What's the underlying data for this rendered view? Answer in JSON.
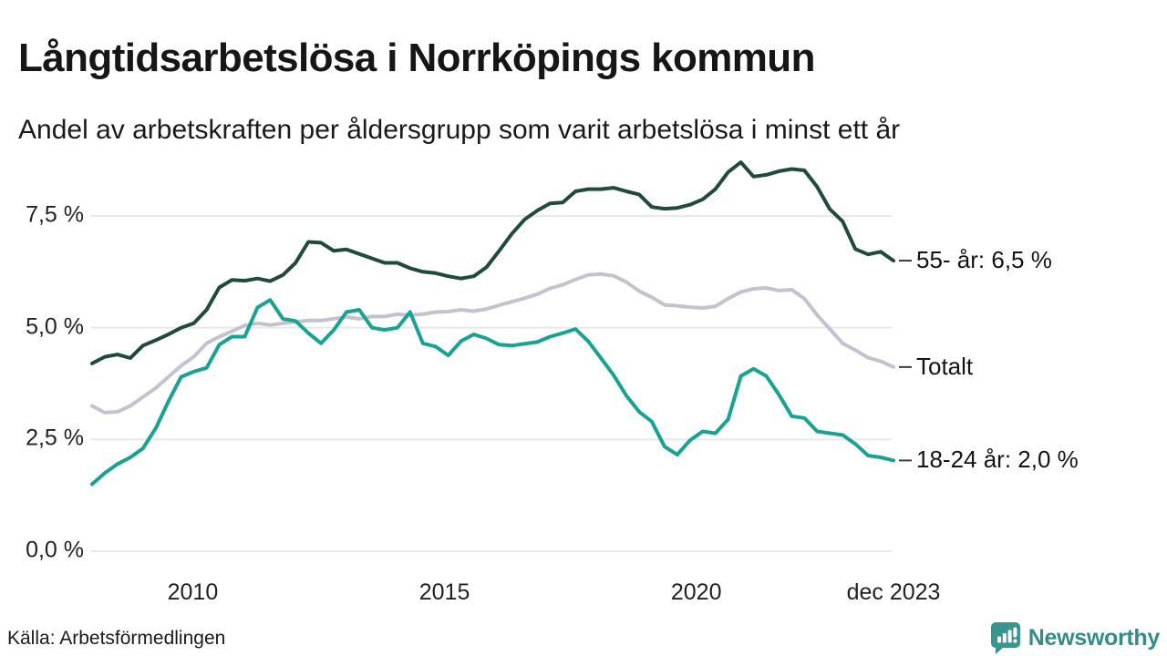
{
  "chart_data": {
    "type": "line",
    "title": "Långtidsarbetslösa i Norrköpings kommun",
    "subtitle": "Andel av arbetskraften per åldersgrupp som varit arbetslösa i minst ett år",
    "source": "Källa: Arbetsförmedlingen",
    "x_range": [
      2008.0,
      2023.917
    ],
    "ylim": [
      0,
      9.2
    ],
    "grid": "horizontal-only",
    "legend": "end-of-line annotations at right",
    "y_ticks": [
      {
        "value": 0.0,
        "label": "0,0 %"
      },
      {
        "value": 2.5,
        "label": "2,5 %"
      },
      {
        "value": 5.0,
        "label": "5,0 %"
      },
      {
        "value": 7.5,
        "label": "7,5 %"
      }
    ],
    "x_ticks": [
      {
        "t": 2010.0,
        "label": "2010"
      },
      {
        "t": 2015.0,
        "label": "2015"
      },
      {
        "t": 2020.0,
        "label": "2020"
      },
      {
        "t": 2023.917,
        "label": "dec 2023"
      }
    ],
    "series": [
      {
        "name": "Totalt",
        "annotation": "Totalt",
        "color_key": "series_total",
        "end_value": 4.1,
        "values": [
          3.25,
          3.1,
          3.12,
          3.25,
          3.45,
          3.65,
          3.9,
          4.15,
          4.35,
          4.65,
          4.8,
          4.92,
          5.05,
          5.1,
          5.06,
          5.1,
          5.13,
          5.16,
          5.16,
          5.2,
          5.24,
          5.2,
          5.25,
          5.25,
          5.3,
          5.28,
          5.3,
          5.35,
          5.36,
          5.4,
          5.37,
          5.42,
          5.5,
          5.58,
          5.66,
          5.75,
          5.88,
          5.96,
          6.08,
          6.18,
          6.2,
          6.16,
          6.02,
          5.82,
          5.68,
          5.51,
          5.49,
          5.46,
          5.44,
          5.48,
          5.65,
          5.8,
          5.87,
          5.89,
          5.83,
          5.85,
          5.65,
          5.28,
          4.97,
          4.65,
          4.5,
          4.33,
          4.25,
          4.12
        ]
      },
      {
        "name": "55- år",
        "annotation": "55- år: 6,5 %",
        "color_key": "series_55",
        "end_value": 6.5,
        "values": [
          4.2,
          4.35,
          4.4,
          4.32,
          4.6,
          4.72,
          4.85,
          5.0,
          5.1,
          5.4,
          5.9,
          6.07,
          6.05,
          6.1,
          6.04,
          6.18,
          6.45,
          6.92,
          6.9,
          6.72,
          6.75,
          6.65,
          6.55,
          6.45,
          6.45,
          6.33,
          6.25,
          6.22,
          6.15,
          6.1,
          6.15,
          6.35,
          6.72,
          7.1,
          7.42,
          7.62,
          7.78,
          7.8,
          8.05,
          8.1,
          8.1,
          8.13,
          8.05,
          7.98,
          7.7,
          7.66,
          7.68,
          7.75,
          7.87,
          8.1,
          8.48,
          8.7,
          8.38,
          8.42,
          8.5,
          8.55,
          8.52,
          8.15,
          7.65,
          7.38,
          6.76,
          6.64,
          6.7,
          6.5
        ]
      },
      {
        "name": "18-24 år",
        "annotation": "18-24 år: 2,0 %",
        "color_key": "series_1824",
        "end_value": 2.0,
        "values": [
          1.5,
          1.75,
          1.95,
          2.1,
          2.3,
          2.75,
          3.35,
          3.9,
          4.02,
          4.1,
          4.62,
          4.8,
          4.8,
          5.45,
          5.62,
          5.2,
          5.15,
          4.88,
          4.65,
          4.95,
          5.35,
          5.4,
          5.0,
          4.95,
          5.0,
          5.35,
          4.65,
          4.58,
          4.38,
          4.7,
          4.85,
          4.76,
          4.62,
          4.6,
          4.64,
          4.68,
          4.8,
          4.88,
          4.97,
          4.7,
          4.32,
          3.94,
          3.48,
          3.12,
          2.9,
          2.34,
          2.16,
          2.48,
          2.68,
          2.64,
          2.95,
          3.92,
          4.08,
          3.92,
          3.5,
          3.02,
          2.98,
          2.68,
          2.64,
          2.6,
          2.4,
          2.14,
          2.1,
          2.03
        ]
      }
    ]
  },
  "colors": {
    "series_55": "#204a3d",
    "series_total": "#c4c2ce",
    "series_1824": "#18a291",
    "grid": "#e8e8e8",
    "annotation_dash": "#3a3a3a",
    "brand_teal": "#338c87"
  },
  "brand": {
    "name": "Newsworthy"
  }
}
